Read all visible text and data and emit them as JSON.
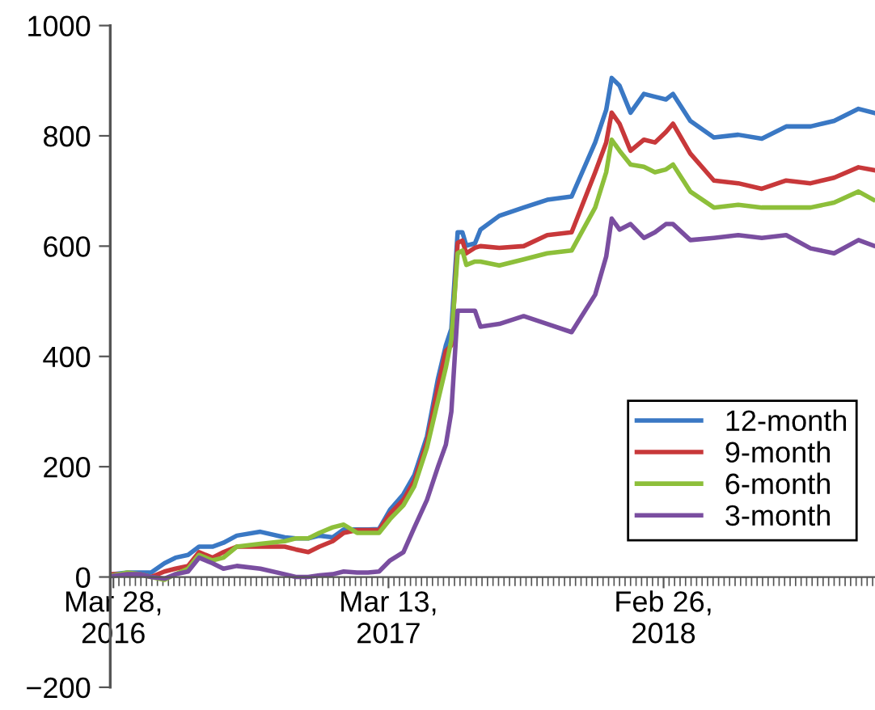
{
  "chart_data": {
    "type": "line",
    "x": [
      "2016-03-28",
      "2016-04-15",
      "2016-05-01",
      "2016-05-15",
      "2016-06-01",
      "2016-06-15",
      "2016-07-01",
      "2016-07-15",
      "2016-08-01",
      "2016-08-15",
      "2016-09-01",
      "2016-10-01",
      "2016-11-01",
      "2016-11-15",
      "2016-12-01",
      "2016-12-15",
      "2017-01-01",
      "2017-01-15",
      "2017-02-01",
      "2017-02-15",
      "2017-03-01",
      "2017-03-15",
      "2017-04-01",
      "2017-04-15",
      "2017-05-01",
      "2017-05-15",
      "2017-05-25",
      "2017-06-01",
      "2017-06-09",
      "2017-06-15",
      "2017-06-20",
      "2017-07-01",
      "2017-07-08",
      "2017-08-01",
      "2017-09-01",
      "2017-10-01",
      "2017-11-01",
      "2017-12-01",
      "2017-12-15",
      "2017-12-22",
      "2018-01-01",
      "2018-01-15",
      "2018-02-01",
      "2018-02-15",
      "2018-03-01",
      "2018-03-10",
      "2018-04-01",
      "2018-05-01",
      "2018-06-01",
      "2018-07-01",
      "2018-08-01",
      "2018-09-01",
      "2018-10-01",
      "2018-11-01",
      "2018-11-20"
    ],
    "series": [
      {
        "name": "12-month",
        "color": "#3a78c4",
        "values": [
          5,
          8,
          8,
          8,
          25,
          35,
          40,
          55,
          55,
          62,
          75,
          82,
          72,
          70,
          70,
          75,
          72,
          86,
          86,
          86,
          87,
          122,
          150,
          185,
          255,
          360,
          420,
          450,
          625,
          625,
          601,
          605,
          630,
          655,
          670,
          684,
          690,
          788,
          847,
          905,
          891,
          842,
          876,
          871,
          866,
          876,
          827,
          797,
          802,
          795,
          817,
          817,
          827,
          849,
          842
        ]
      },
      {
        "name": "9-month",
        "color": "#c8383a",
        "values": [
          5,
          5,
          5,
          0,
          10,
          15,
          20,
          45,
          35,
          45,
          55,
          55,
          55,
          50,
          45,
          55,
          65,
          80,
          85,
          85,
          85,
          115,
          140,
          175,
          245,
          345,
          410,
          420,
          606,
          610,
          587,
          597,
          600,
          597,
          600,
          620,
          625,
          734,
          788,
          842,
          822,
          773,
          793,
          788,
          807,
          822,
          768,
          719,
          714,
          704,
          719,
          714,
          724,
          743,
          738
        ]
      },
      {
        "name": "6-month",
        "color": "#8dbf3a",
        "values": [
          3,
          8,
          5,
          0,
          -5,
          5,
          15,
          40,
          30,
          35,
          55,
          60,
          65,
          70,
          70,
          80,
          90,
          95,
          80,
          80,
          80,
          105,
          130,
          165,
          235,
          320,
          380,
          430,
          587,
          592,
          566,
          572,
          572,
          565,
          576,
          587,
          592,
          670,
          734,
          793,
          773,
          748,
          744,
          734,
          739,
          748,
          699,
          670,
          675,
          670,
          670,
          670,
          679,
          699,
          684
        ]
      },
      {
        "name": "3-month",
        "color": "#7a4ea0",
        "values": [
          2,
          5,
          5,
          0,
          -3,
          5,
          10,
          35,
          25,
          15,
          20,
          15,
          5,
          0,
          0,
          3,
          5,
          10,
          8,
          8,
          10,
          30,
          45,
          90,
          140,
          200,
          240,
          300,
          483,
          483,
          483,
          483,
          454,
          459,
          473,
          459,
          444,
          512,
          581,
          650,
          630,
          640,
          615,
          625,
          640,
          640,
          611,
          615,
          620,
          615,
          620,
          596,
          587,
          611,
          601
        ]
      }
    ],
    "xlim": [
      "2016-03-24",
      "2018-11-22"
    ],
    "xticks": [
      {
        "value": "2016-03-28",
        "label": "Mar 28,\n2016"
      },
      {
        "value": "2017-03-13",
        "label": "Mar 13,\n2017"
      },
      {
        "value": "2018-02-26",
        "label": "Feb 26,\n2018"
      }
    ],
    "ylim": [
      -200,
      1000
    ],
    "yticks": [
      {
        "value": -200,
        "label": "−200"
      },
      0,
      200,
      400,
      600,
      800,
      1000
    ],
    "legend": "lower right",
    "grid": false,
    "marker": "none",
    "line_style": "solid"
  }
}
